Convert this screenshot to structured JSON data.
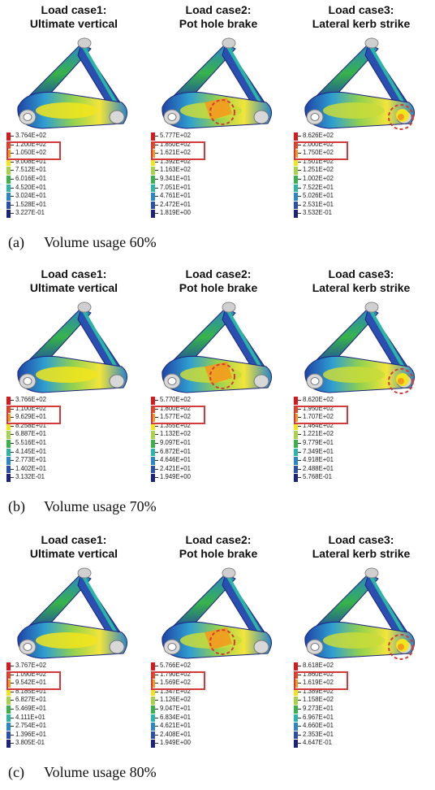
{
  "rows": [
    {
      "caption_label": "(a)",
      "caption_text": "Volume usage 60%",
      "panels": [
        {
          "title1": "Load case1:",
          "title2": "Ultimate vertical",
          "legend": [
            "3.764E+02",
            "1.200E+02",
            "1.050E+02",
            "9.008E+01",
            "7.512E+01",
            "6.016E+01",
            "4.520E+01",
            "3.024E+01",
            "1.528E+01",
            "3.227E-01"
          ]
        },
        {
          "title1": "Load case2:",
          "title2": "Pot hole brake",
          "legend": [
            "5.777E+02",
            "1.850E+02",
            "1.621E+02",
            "1.392E+02",
            "1.163E+02",
            "9.341E+01",
            "7.051E+01",
            "4.761E+01",
            "2.472E+01",
            "1.819E+00"
          ]
        },
        {
          "title1": "Load case3:",
          "title2": "Lateral kerb strike",
          "legend": [
            "8.626E+02",
            "2.000E+02",
            "1.750E+02",
            "1.501E+02",
            "1.251E+02",
            "1.002E+02",
            "7.522E+01",
            "5.026E+01",
            "2.531E+01",
            "3.532E-01"
          ]
        }
      ]
    },
    {
      "caption_label": "(b)",
      "caption_text": "Volume usage 70%",
      "panels": [
        {
          "title1": "Load case1:",
          "title2": "Ultimate vertical",
          "legend": [
            "3.766E+02",
            "1.100E+02",
            "9.629E+01",
            "8.258E+01",
            "6.887E+01",
            "5.516E+01",
            "4.145E+01",
            "2.773E+01",
            "1.402E+01",
            "3.132E-01"
          ]
        },
        {
          "title1": "Load case2:",
          "title2": "Pot hole brake",
          "legend": [
            "5.770E+02",
            "1.800E+02",
            "1.577E+02",
            "1.355E+02",
            "1.132E+02",
            "9.097E+01",
            "6.872E+01",
            "4.646E+01",
            "2.421E+01",
            "1.949E+00"
          ]
        },
        {
          "title1": "Load case3:",
          "title2": "Lateral kerb strike",
          "legend": [
            "8.620E+02",
            "1.950E+02",
            "1.707E+02",
            "1.464E+02",
            "1.221E+02",
            "9.779E+01",
            "7.349E+01",
            "4.918E+01",
            "2.488E+01",
            "5.768E-01"
          ]
        }
      ]
    },
    {
      "caption_label": "(c)",
      "caption_text": "Volume usage 80%",
      "panels": [
        {
          "title1": "Load case1:",
          "title2": "Ultimate vertical",
          "legend": [
            "3.767E+02",
            "1.090E+02",
            "9.542E+01",
            "8.185E+01",
            "6.827E+01",
            "5.469E+01",
            "4.111E+01",
            "2.754E+01",
            "1.396E+01",
            "3.805E-01"
          ]
        },
        {
          "title1": "Load case2:",
          "title2": "Pot hole brake",
          "legend": [
            "5.766E+02",
            "1.790E+02",
            "1.569E+02",
            "1.347E+02",
            "1.126E+02",
            "9.047E+01",
            "6.834E+01",
            "4.621E+01",
            "2.408E+01",
            "1.949E+00"
          ]
        },
        {
          "title1": "Load case3:",
          "title2": "Lateral kerb strike",
          "legend": [
            "8.618E+02",
            "1.860E+02",
            "1.619E+02",
            "1.389E+02",
            "1.158E+02",
            "9.273E+01",
            "6.967E+01",
            "4.660E+01",
            "2.353E+01",
            "4.647E-01"
          ]
        }
      ]
    }
  ],
  "colors": {
    "legend_scale": [
      "#d7191c",
      "#e94a1c",
      "#f39a1e",
      "#f2e51c",
      "#a6d34a",
      "#37b34a",
      "#2bb5a5",
      "#2a86c8",
      "#2a4fb0",
      "#1b237f"
    ],
    "highlight": "#d43a3a"
  }
}
